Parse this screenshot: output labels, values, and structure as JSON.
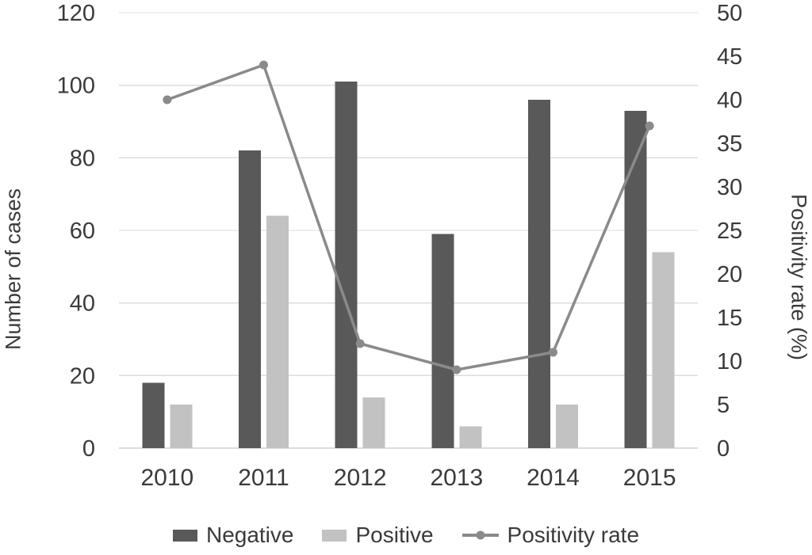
{
  "chart_data": {
    "type": "bar",
    "subtype": "bar-line-combo",
    "title": "",
    "categories": [
      "2010",
      "2011",
      "2012",
      "2013",
      "2014",
      "2015"
    ],
    "series": [
      {
        "name": "Negative",
        "type": "bar",
        "axis": "left",
        "color": "#595959",
        "values": [
          18,
          82,
          101,
          59,
          96,
          93
        ]
      },
      {
        "name": "Positive",
        "type": "bar",
        "axis": "left",
        "color": "#c2c2c2",
        "values": [
          12,
          64,
          14,
          6,
          12,
          54
        ]
      },
      {
        "name": "Positivity rate",
        "type": "line",
        "axis": "right",
        "color": "#8a8a8a",
        "values": [
          40,
          44,
          12,
          9,
          11,
          37
        ]
      }
    ],
    "left_axis": {
      "label": "Number of cases",
      "min": 0,
      "max": 120,
      "ticks": [
        0,
        20,
        40,
        60,
        80,
        100,
        120
      ]
    },
    "right_axis": {
      "label": "Positivity rate (%)",
      "min": 0,
      "max": 50,
      "ticks": [
        0,
        5,
        10,
        15,
        20,
        25,
        30,
        35,
        40,
        45,
        50
      ]
    },
    "xlabel": "",
    "grid": true,
    "legend_position": "bottom",
    "colors": {
      "grid": "#dcdcdc",
      "text": "#3a3a3a",
      "background": "#ffffff"
    }
  }
}
